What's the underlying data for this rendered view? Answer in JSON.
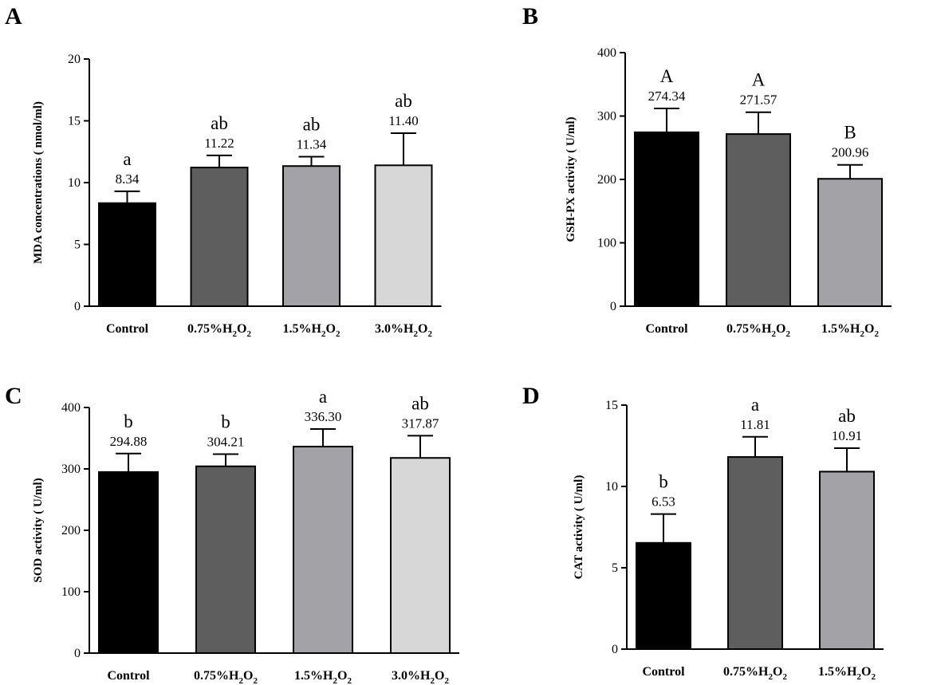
{
  "colors": {
    "Control": "#000000",
    "0.75%H2O2": "#5e5e5e",
    "1.5%H2O2": "#a3a3a7",
    "3.0%H2O2": "#d7d7d7"
  },
  "chart_data": [
    {
      "panel": "A",
      "type": "bar",
      "ylabel": "MDA concentrations ( nmol/ml)",
      "ylim": [
        0,
        20
      ],
      "yticks": [
        0,
        5,
        10,
        15,
        20
      ],
      "categories": [
        "Control",
        "0.75%H2O2",
        "1.5%H2O2",
        "3.0%H2O2"
      ],
      "values": [
        8.34,
        11.22,
        11.34,
        11.4
      ],
      "error_upper": [
        9.3,
        12.2,
        12.1,
        14.0
      ],
      "value_labels": [
        "8.34",
        "11.22",
        "11.34",
        "11.40"
      ],
      "significance": [
        "a",
        "ab",
        "ab",
        "ab"
      ]
    },
    {
      "panel": "B",
      "type": "bar",
      "ylabel": "GSH-PX activity ( U/ml)",
      "ylim": [
        0,
        400
      ],
      "yticks": [
        0,
        100,
        200,
        300,
        400
      ],
      "categories": [
        "Control",
        "0.75%H2O2",
        "1.5%H2O2"
      ],
      "values": [
        274.34,
        271.57,
        200.96
      ],
      "error_upper": [
        312,
        306,
        223
      ],
      "value_labels": [
        "274.34",
        "271.57",
        "200.96"
      ],
      "significance": [
        "A",
        "A",
        "B"
      ]
    },
    {
      "panel": "C",
      "type": "bar",
      "ylabel": "SOD activity ( U/ml)",
      "ylim": [
        0,
        400
      ],
      "yticks": [
        0,
        100,
        200,
        300,
        400
      ],
      "categories": [
        "Control",
        "0.75%H2O2",
        "1.5%H2O2",
        "3.0%H2O2"
      ],
      "values": [
        294.88,
        304.21,
        336.3,
        317.87
      ],
      "error_upper": [
        325,
        324,
        365,
        354
      ],
      "value_labels": [
        "294.88",
        "304.21",
        "336.30",
        "317.87"
      ],
      "significance": [
        "b",
        "b",
        "a",
        "ab"
      ]
    },
    {
      "panel": "D",
      "type": "bar",
      "ylabel": "CAT activity ( U/ml)",
      "ylim": [
        0,
        15
      ],
      "yticks": [
        0,
        5,
        10,
        15
      ],
      "categories": [
        "Control",
        "0.75%H2O2",
        "1.5%H2O2"
      ],
      "values": [
        6.53,
        11.81,
        10.91
      ],
      "error_upper": [
        8.3,
        13.05,
        12.35
      ],
      "value_labels": [
        "6.53",
        "11.81",
        "10.91"
      ],
      "significance": [
        "b",
        "a",
        "ab"
      ]
    }
  ]
}
